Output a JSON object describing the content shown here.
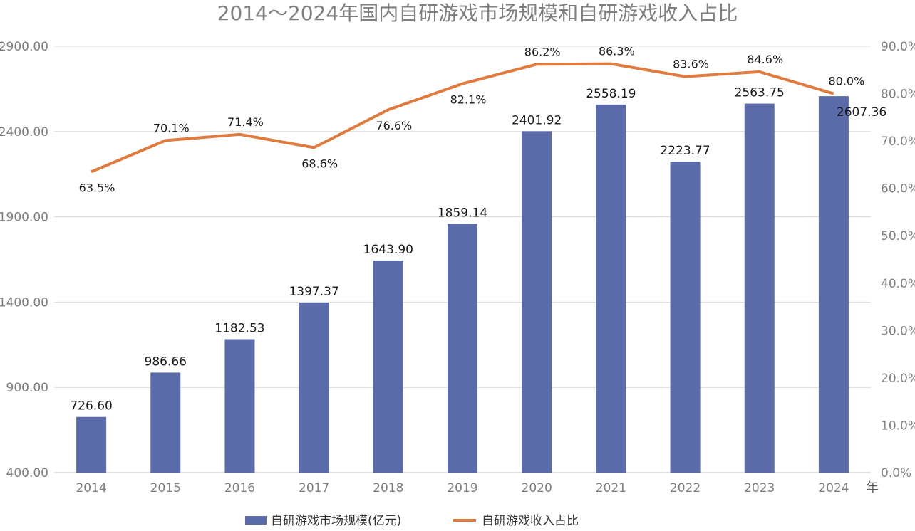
{
  "chart_data": {
    "type": "bar",
    "title": "2014～2024年国内自研游戏市场规模和自研游戏收入占比",
    "x_unit_label": "年",
    "categories": [
      "2014",
      "2015",
      "2016",
      "2017",
      "2018",
      "2019",
      "2020",
      "2021",
      "2022",
      "2023",
      "2024"
    ],
    "y_left": {
      "range": [
        400,
        2900
      ],
      "ticks": [
        400,
        900,
        1400,
        1900,
        2400,
        2900
      ],
      "tick_labels": [
        "400.00",
        "900.00",
        "1400.00",
        "1900.00",
        "2400.00",
        "2900.00"
      ]
    },
    "y_right": {
      "range": [
        0,
        90
      ],
      "ticks": [
        0,
        10,
        20,
        30,
        40,
        50,
        60,
        70,
        80,
        90
      ],
      "tick_labels": [
        "0.0%",
        "10.0%",
        "20.0%",
        "30.0%",
        "40.0%",
        "50.0%",
        "60.0%",
        "70.0%",
        "80.0%",
        "90.0%"
      ]
    },
    "grid": true,
    "legend_position": "bottom",
    "series": [
      {
        "name": "自研游戏市场规模(亿元)",
        "type": "bar",
        "axis": "left",
        "color": "#5b6aa8",
        "values": [
          726.6,
          986.66,
          1182.53,
          1397.37,
          1643.9,
          1859.14,
          2401.92,
          2558.19,
          2223.77,
          2563.75,
          2607.36
        ],
        "labels": [
          "726.60",
          "986.66",
          "1182.53",
          "1397.37",
          "1643.90",
          "1859.14",
          "2401.92",
          "2558.19",
          "2223.77",
          "2563.75",
          "2607.36"
        ]
      },
      {
        "name": "自研游戏收入占比",
        "type": "line",
        "axis": "right",
        "color": "#e07b3f",
        "values": [
          63.5,
          70.1,
          71.4,
          68.6,
          76.6,
          82.1,
          86.2,
          86.3,
          83.6,
          84.6,
          80.0
        ],
        "labels": [
          "63.5%",
          "70.1%",
          "71.4%",
          "68.6%",
          "76.6%",
          "82.1%",
          "86.2%",
          "86.3%",
          "83.6%",
          "84.6%",
          "80.0%"
        ]
      }
    ]
  }
}
